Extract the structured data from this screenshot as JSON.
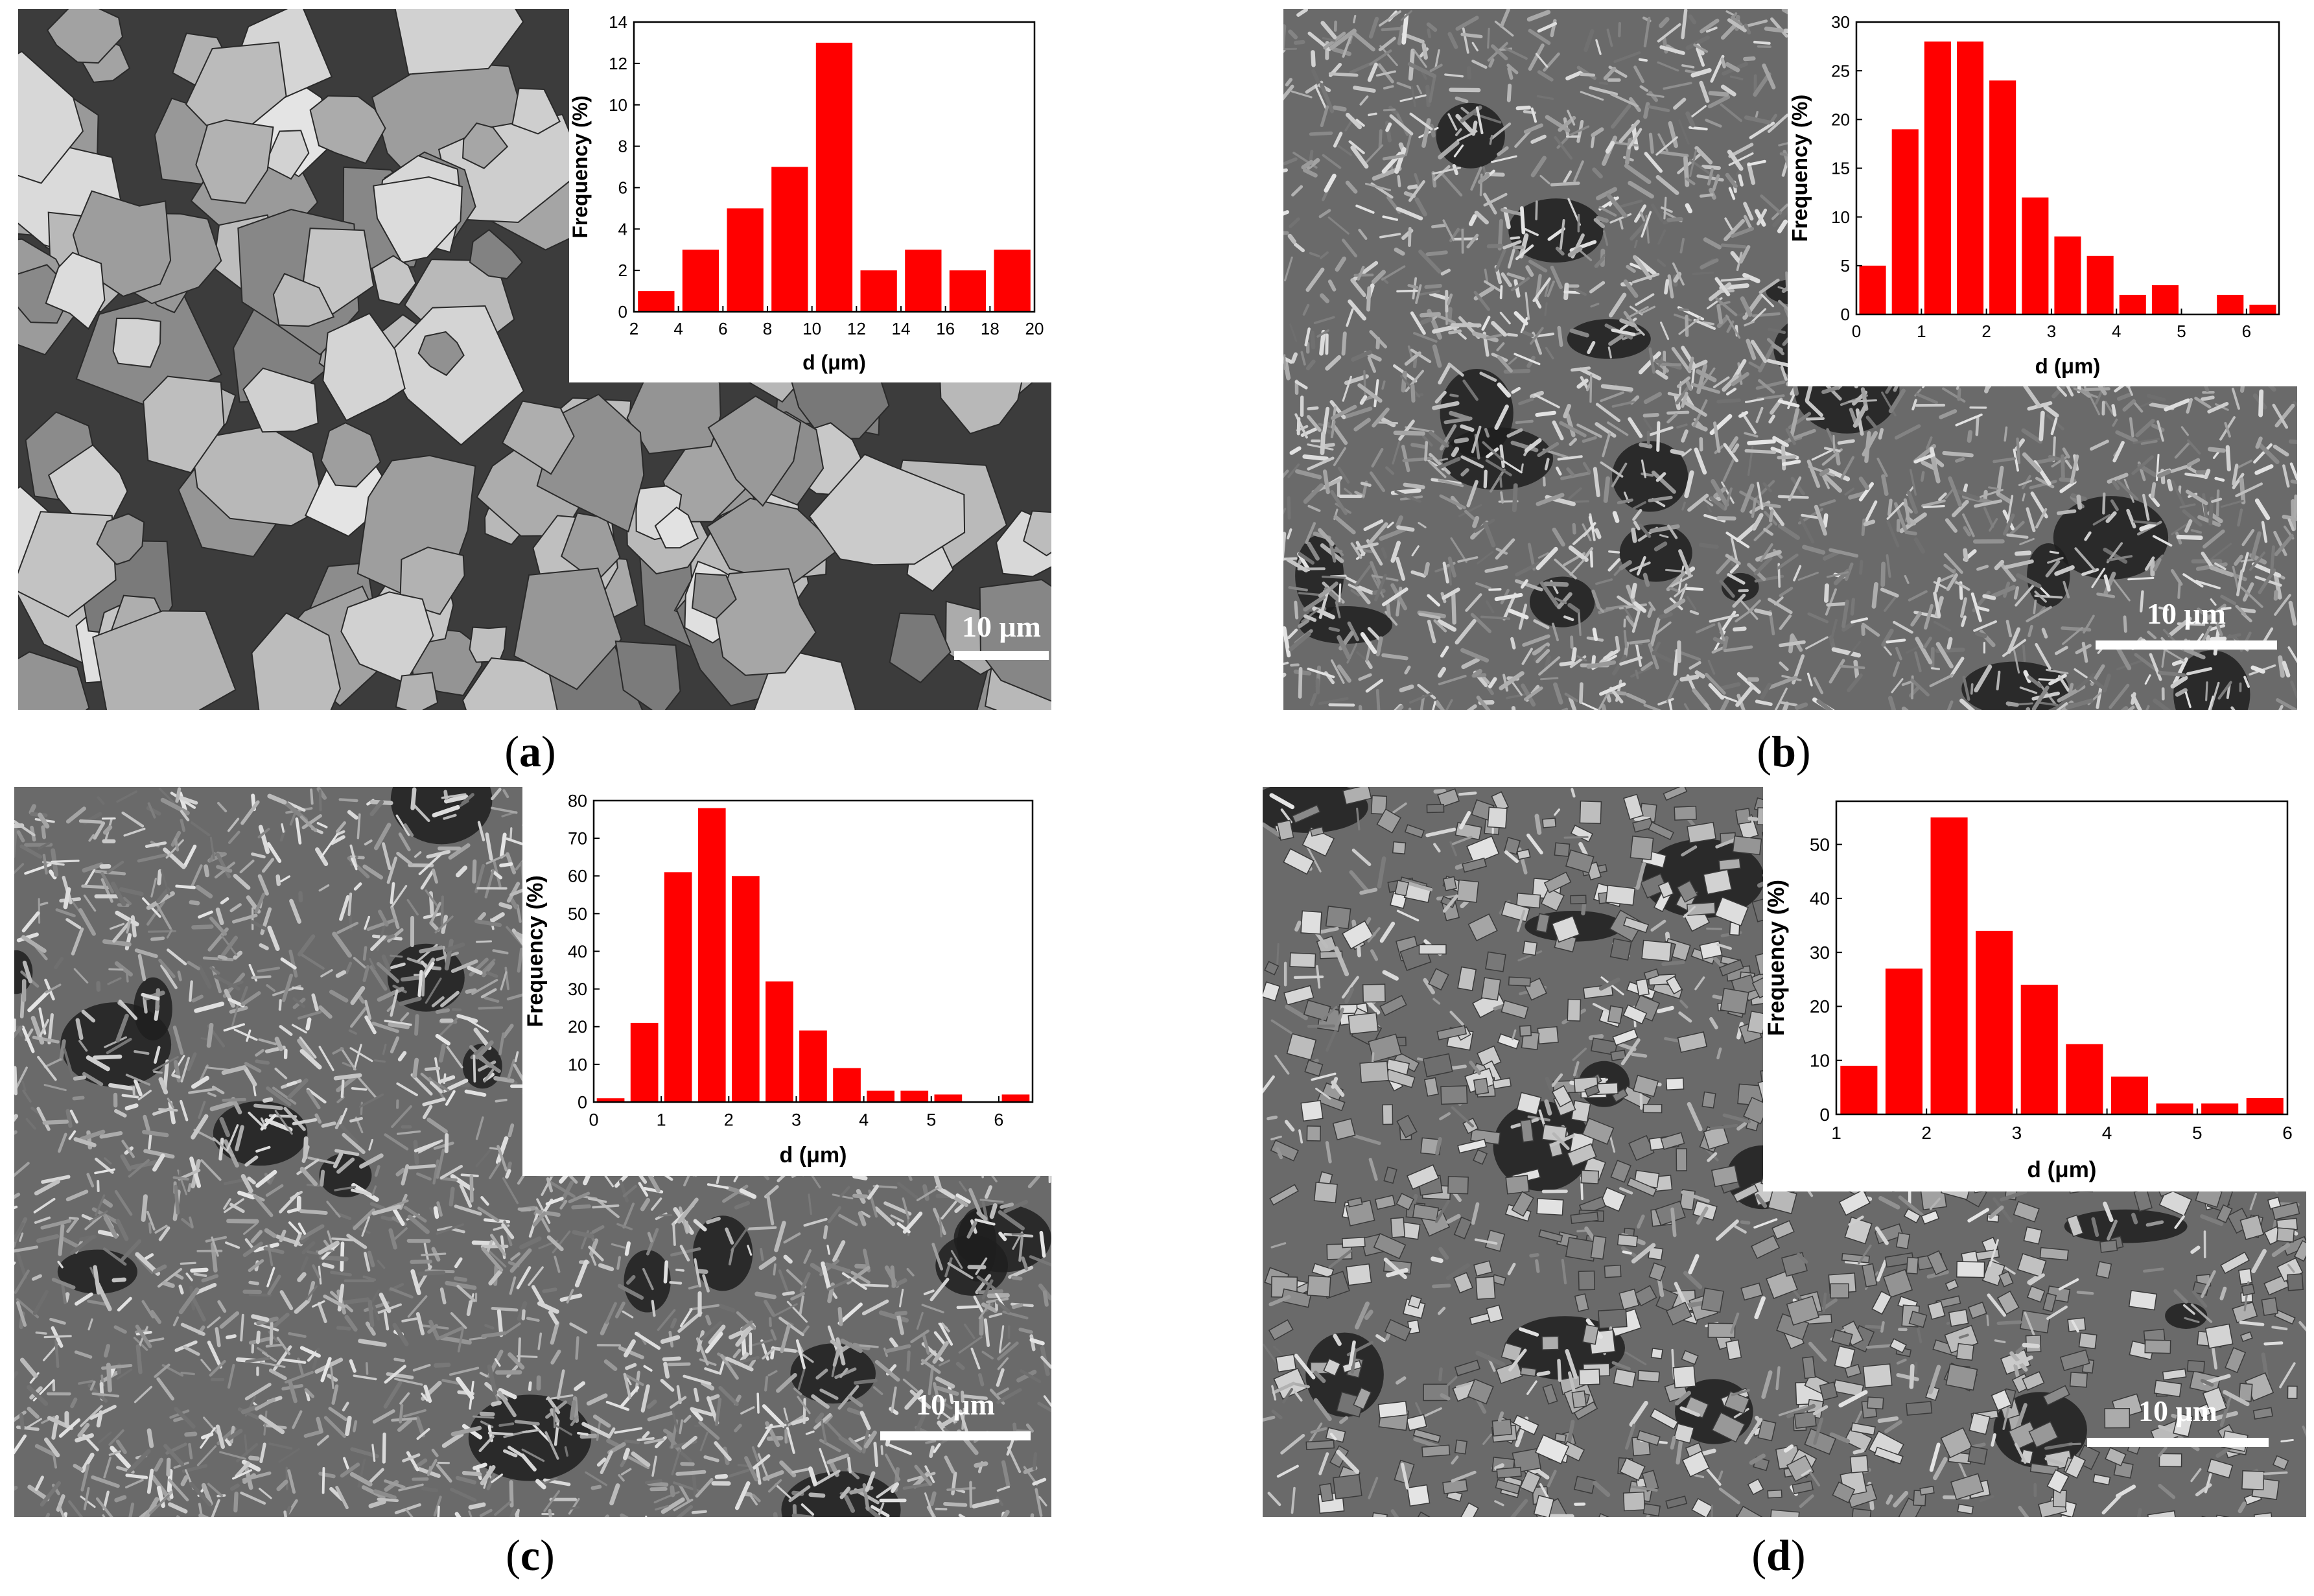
{
  "colors": {
    "bar": "#ff0000",
    "axis": "#000000",
    "scale": "#ffffff"
  },
  "panels": [
    {
      "caption": "a",
      "scale_label": "10 μm",
      "texture": "faceted-granules",
      "chart_data": {
        "type": "bar",
        "xlabel": "d (μm)",
        "ylabel": "Frequency (%)",
        "xlim": [
          2,
          20
        ],
        "ylim": [
          0,
          14
        ],
        "xticks": [
          2,
          4,
          6,
          8,
          10,
          12,
          14,
          16,
          18,
          20
        ],
        "yticks": [
          0,
          2,
          4,
          6,
          8,
          10,
          12,
          14
        ],
        "bin_width": 2,
        "x": [
          3,
          5,
          7,
          9,
          11,
          13,
          15,
          17,
          19
        ],
        "values": [
          1,
          3,
          5,
          7,
          13,
          2,
          3,
          2,
          3
        ]
      }
    },
    {
      "caption": "b",
      "scale_label": "10 μm",
      "texture": "fine-flakes",
      "chart_data": {
        "type": "bar",
        "xlabel": "d (μm)",
        "ylabel": "Frequency (%)",
        "xlim": [
          0,
          6.5
        ],
        "ylim": [
          0,
          30
        ],
        "xticks": [
          0,
          1,
          2,
          3,
          4,
          5,
          6
        ],
        "yticks": [
          0,
          5,
          10,
          15,
          20,
          25,
          30
        ],
        "bin_width": 0.5,
        "x": [
          0.25,
          0.75,
          1.25,
          1.75,
          2.25,
          2.75,
          3.25,
          3.75,
          4.25,
          4.75,
          5.25,
          5.75,
          6.25
        ],
        "values": [
          5,
          19,
          28,
          28,
          24,
          12,
          8,
          6,
          2,
          3,
          0,
          2,
          1
        ]
      }
    },
    {
      "caption": "c",
      "scale_label": "10 μm",
      "texture": "fine-flakes",
      "chart_data": {
        "type": "bar",
        "xlabel": "d (μm)",
        "ylabel": "Frequency (%)",
        "xlim": [
          0,
          6.5
        ],
        "ylim": [
          0,
          80
        ],
        "xticks": [
          0,
          1,
          2,
          3,
          4,
          5,
          6
        ],
        "yticks": [
          0,
          10,
          20,
          30,
          40,
          50,
          60,
          70,
          80
        ],
        "bin_width": 0.5,
        "x": [
          0.25,
          0.75,
          1.25,
          1.75,
          2.25,
          2.75,
          3.25,
          3.75,
          4.25,
          4.75,
          5.25,
          5.75,
          6.25
        ],
        "values": [
          1,
          21,
          61,
          78,
          60,
          32,
          19,
          9,
          3,
          3,
          2,
          0,
          2
        ]
      }
    },
    {
      "caption": "d",
      "scale_label": "10 μm",
      "texture": "blocky-crystals",
      "chart_data": {
        "type": "bar",
        "xlabel": "d (μm)",
        "ylabel": "Frequency (%)",
        "xlim": [
          1,
          6
        ],
        "ylim": [
          0,
          58
        ],
        "xticks": [
          1,
          2,
          3,
          4,
          5,
          6
        ],
        "yticks": [
          0,
          10,
          20,
          30,
          40,
          50
        ],
        "bin_width": 0.5,
        "x": [
          1.25,
          1.75,
          2.25,
          2.75,
          3.25,
          3.75,
          4.25,
          4.75,
          5.25,
          5.75
        ],
        "values": [
          9,
          27,
          55,
          34,
          24,
          13,
          7,
          2,
          2,
          3
        ]
      }
    }
  ]
}
